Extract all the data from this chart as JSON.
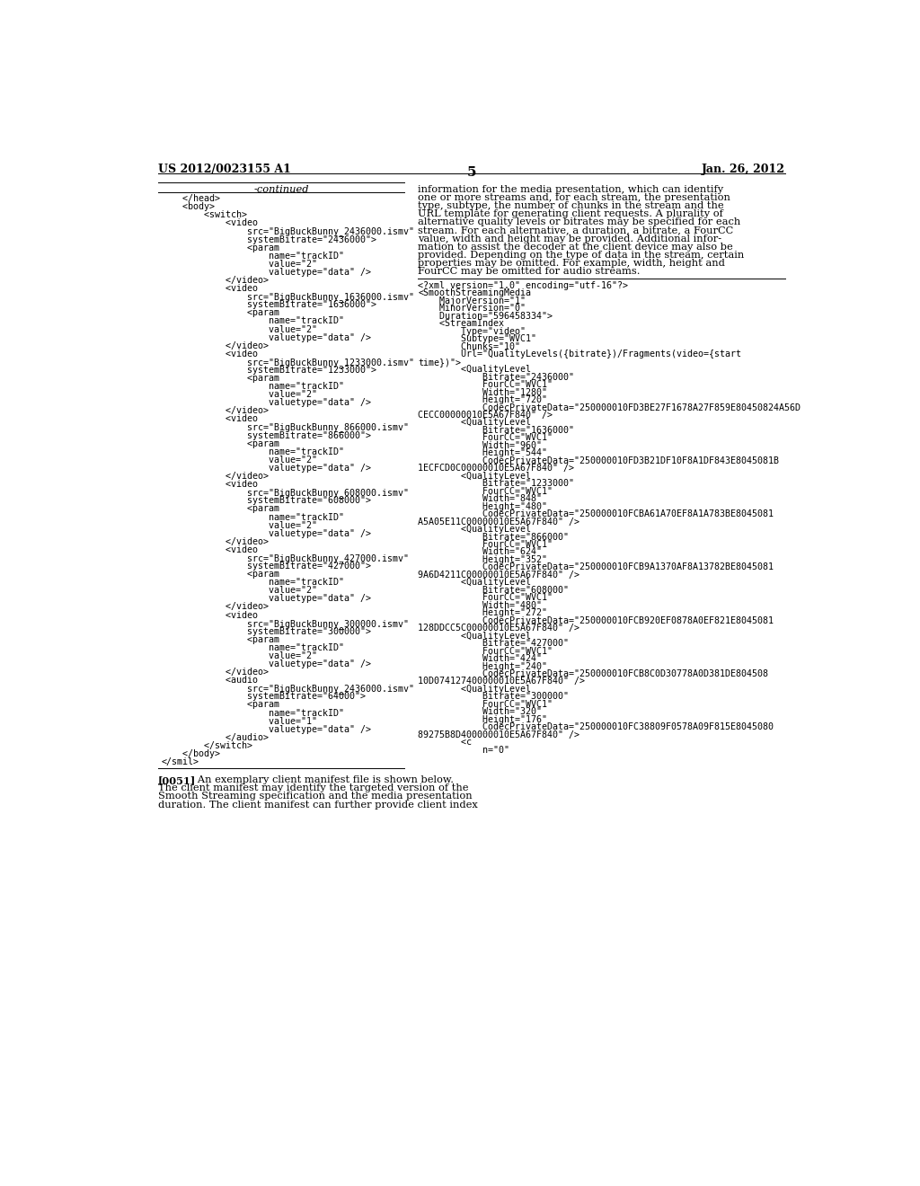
{
  "header_left": "US 2012/0023155 A1",
  "header_right": "Jan. 26, 2012",
  "page_number": "5",
  "continued_label": "-continued",
  "left_code_lines": [
    "    </head>",
    "    <body>",
    "        <switch>",
    "            <video",
    "                src=\"BigBuckBunny_2436000.ismv\"",
    "                systemBitrate=\"2436000\">",
    "                <param",
    "                    name=\"trackID\"",
    "                    value=\"2\"",
    "                    valuetype=\"data\" />",
    "            </video>",
    "            <video",
    "                src=\"BigBuckBunny_1636000.ismv\"",
    "                systemBitrate=\"1636000\">",
    "                <param",
    "                    name=\"trackID\"",
    "                    value=\"2\"",
    "                    valuetype=\"data\" />",
    "            </video>",
    "            <video",
    "                src=\"BigBuckBunny_1233000.ismv\"",
    "                systemBitrate=\"1233000\">",
    "                <param",
    "                    name=\"trackID\"",
    "                    value=\"2\"",
    "                    valuetype=\"data\" />",
    "            </video>",
    "            <video",
    "                src=\"BigBuckBunny_866000.ismv\"",
    "                systemBitrate=\"866000\">",
    "                <param",
    "                    name=\"trackID\"",
    "                    value=\"2\"",
    "                    valuetype=\"data\" />",
    "            </video>",
    "            <video",
    "                src=\"BigBuckBunny_608000.ismv\"",
    "                systemBitrate=\"608000\">",
    "                <param",
    "                    name=\"trackID\"",
    "                    value=\"2\"",
    "                    valuetype=\"data\" />",
    "            </video>",
    "            <video",
    "                src=\"BigBuckBunny_427000.ismv\"",
    "                systemBitrate=\"427000\">",
    "                <param",
    "                    name=\"trackID\"",
    "                    value=\"2\"",
    "                    valuetype=\"data\" />",
    "            </video>",
    "            <video",
    "                src=\"BigBuckBunny_300000.ismv\"",
    "                systemBitrate=\"300000\">",
    "                <param",
    "                    name=\"trackID\"",
    "                    value=\"2\"",
    "                    valuetype=\"data\" />",
    "            </video>",
    "            <audio",
    "                src=\"BigBuckBunny_2436000.ismv\"",
    "                systemBitrate=\"64000\">",
    "                <param",
    "                    name=\"trackID\"",
    "                    value=\"1\"",
    "                    valuetype=\"data\" />",
    "            </audio>",
    "        </switch>",
    "    </body>",
    "</smil>"
  ],
  "right_paragraph_lines": [
    "information for the media presentation, which can identify",
    "one or more streams and, for each stream, the presentation",
    "type, subtype, the number of chunks in the stream and the",
    "URL template for generating client requests. A plurality of",
    "alternative quality levels or bitrates may be specified for each",
    "stream. For each alternative, a duration, a bitrate, a FourCC",
    "value, width and height may be provided. Additional infor-",
    "mation to assist the decoder at the client device may also be",
    "provided. Depending on the type of data in the stream, certain",
    "properties may be omitted. For example, width, height and",
    "FourCC may be omitted for audio streams."
  ],
  "right_code_lines": [
    "<?xml version=\"1.0\" encoding=\"utf-16\"?>",
    "<SmoothStreamingMedia",
    "    MajorVersion=\"1\"",
    "    MinorVersion=\"0\"",
    "    Duration=\"596458334\">",
    "    <StreamIndex",
    "        Type=\"video\"",
    "        Subtype=\"WVC1\"",
    "        Chunks=\"10\"",
    "        Url=\"QualityLevels({bitrate})/Fragments(video={start",
    "time})\">",
    "        <QualityLevel",
    "            Bitrate=\"2436000\"",
    "            FourCC=\"WVC1\"",
    "            Width=\"1280\"",
    "            Height=\"720\"",
    "            CodecPrivateData=\"250000010FD3BE27F1678A27F859E80450824A56D",
    "CECC00000010E5A67F840\" />",
    "        <QualityLevel",
    "            Bitrate=\"1636000\"",
    "            FourCC=\"WVC1\"",
    "            Width=\"960\"",
    "            Height=\"544\"",
    "            CodecPrivateData=\"250000010FD3B21DF10F8A1DF843E8045081B",
    "1ECFCD0C00000010E5A67F840\" />",
    "        <QualityLevel",
    "            Bitrate=\"1233000\"",
    "            FourCC=\"WVC1\"",
    "            Width=\"848\"",
    "            Height=\"480\"",
    "            CodecPrivateData=\"250000010FCBA61A70EF8A1A783BE8045081",
    "A5A05E11C00000010E5A67F840\" />",
    "        <QualityLevel",
    "            Bitrate=\"866000\"",
    "            FourCC=\"WVC1\"",
    "            Width=\"624\"",
    "            Height=\"352\"",
    "            CodecPrivateData=\"250000010FCB9A1370AF8A13782BE8045081",
    "9A6D4211C00000010E5A67F840\" />",
    "        <QualityLevel",
    "            Bitrate=\"608000\"",
    "            FourCC=\"WVC1\"",
    "            Width=\"480\"",
    "            Height=\"272\"",
    "            CodecPrivateData=\"250000010FCB920EF0878A0EF821E8045081",
    "128DDCC5C00000010E5A67F840\" />",
    "        <QualityLevel",
    "            Bitrate=\"427000\"",
    "            FourCC=\"WVC1\"",
    "            Width=\"424\"",
    "            Height=\"240\"",
    "            CodecPrivateData=\"250000010FCB8C0D30778A0D381DE804508",
    "10D074127400000010E5A67F840\" />",
    "        <QualityLevel",
    "            Bitrate=\"300000\"",
    "            FourCC=\"WVC1\"",
    "            Width=\"320\"",
    "            Height=\"176\"",
    "            CodecPrivateData=\"250000010FC38809F0578A09F815E8045080",
    "89275B8D400000010E5A67F840\" />",
    "        <c",
    "            n=\"0\""
  ],
  "bottom_lines": [
    "[0051]   An exemplary client manifest file is shown below.",
    "The client manifest may identify the targeted version of the",
    "Smooth Streaming specification and the media presentation",
    "duration. The client manifest can further provide client index"
  ],
  "bg_color": "#ffffff",
  "text_color": "#000000",
  "code_font_size": 7.2,
  "para_font_size": 8.2,
  "header_font_size": 9.0
}
